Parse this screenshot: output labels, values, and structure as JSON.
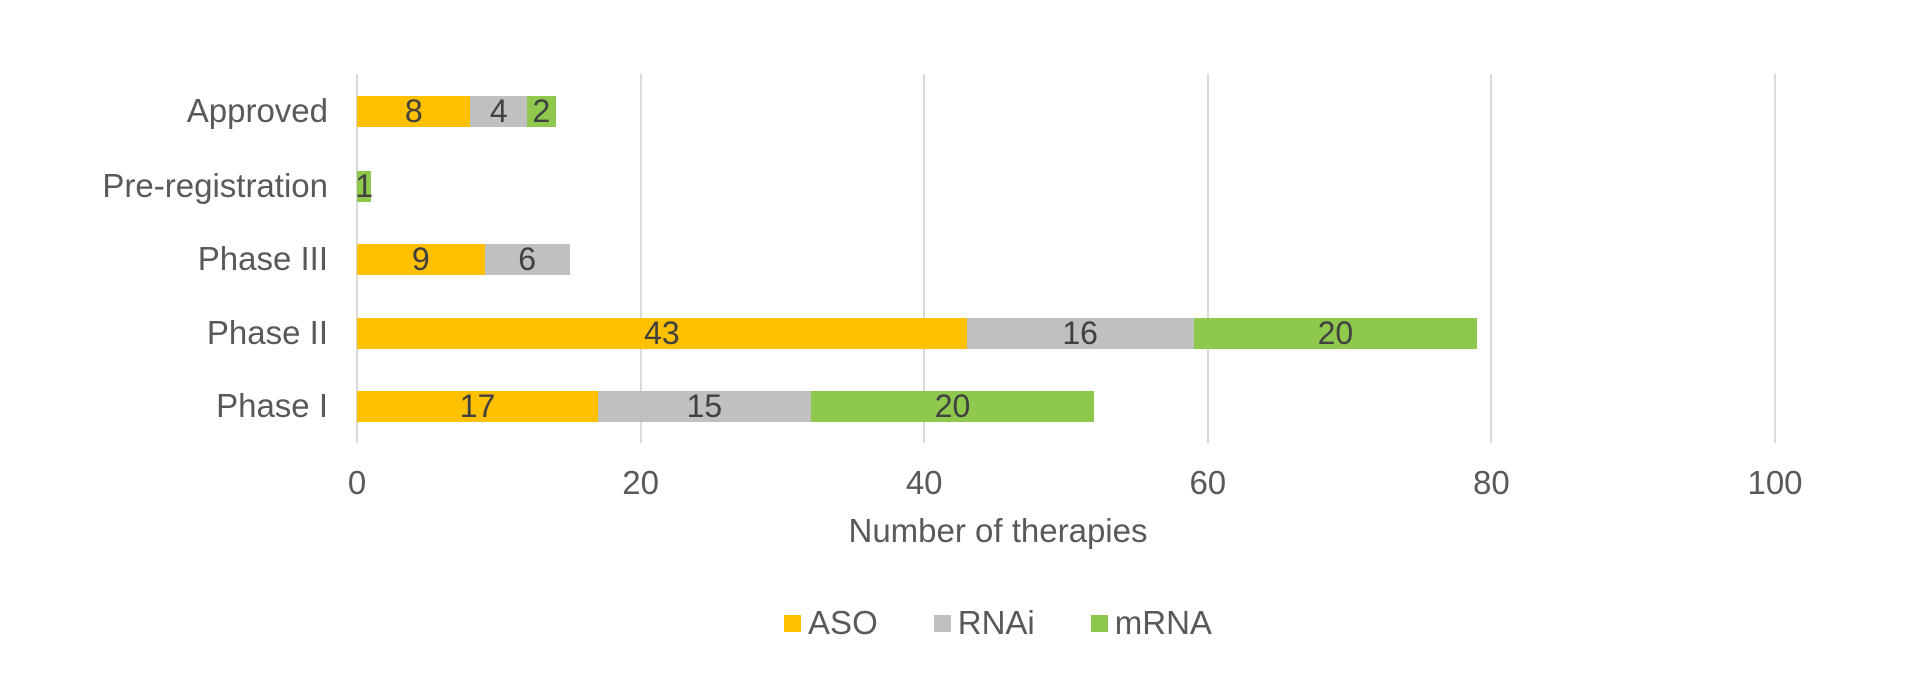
{
  "chart_data": {
    "type": "bar",
    "orientation": "horizontal",
    "stacked": true,
    "title": "",
    "xlabel": "Number of therapies",
    "ylabel": "",
    "categories": [
      "Approved",
      "Pre-registration",
      "Phase III",
      "Phase II",
      "Phase I"
    ],
    "series": [
      {
        "name": "ASO",
        "color": "#FFC000",
        "values": [
          8,
          0,
          9,
          43,
          17
        ]
      },
      {
        "name": "RNAi",
        "color": "#C0C0C0",
        "values": [
          4,
          0,
          6,
          16,
          15
        ]
      },
      {
        "name": "mRNA",
        "color": "#8EC94D",
        "values": [
          2,
          1,
          0,
          20,
          20
        ]
      }
    ],
    "totals": [
      14,
      1,
      15,
      79,
      52
    ],
    "x_ticks": [
      0,
      20,
      40,
      60,
      80,
      100
    ],
    "xlim": [
      0,
      100
    ],
    "data_labels": true,
    "grid": "vertical",
    "legend_position": "bottom"
  },
  "colors": {
    "background": "#ffffff",
    "gridline": "#d9d9d9",
    "axis_text": "#595959",
    "data_label_text": "#404040",
    "aso": "#FFC000",
    "rnai": "#C0C0C0",
    "mrna": "#8EC94D"
  }
}
